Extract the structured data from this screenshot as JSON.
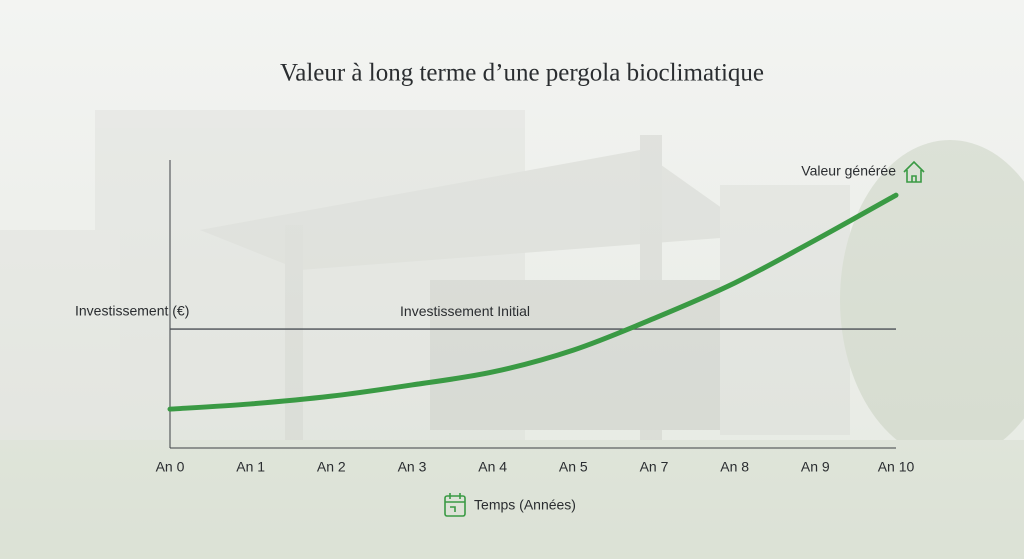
{
  "chart_data": {
    "type": "line",
    "title": "Valeur à long terme d’une pergola bioclimatique",
    "ylabel": "Investissement (€)",
    "xlabel": "Temps (Années)",
    "categories": [
      "An 0",
      "An 1",
      "An 2",
      "An 3",
      "An 4",
      "An 5",
      "An 7",
      "An 8",
      "An 9",
      "An 10"
    ],
    "series": [
      {
        "name": "Valeur générée",
        "color": "#3a9a44",
        "values": [
          13.5,
          15.3,
          18,
          21.9,
          26.4,
          34,
          45,
          57.3,
          72.2,
          87.8
        ]
      }
    ],
    "reference_line": {
      "label": "Investissement Initial",
      "value": 41.3,
      "color": "#4a4f55"
    },
    "ylim": [
      0,
      100
    ]
  }
}
